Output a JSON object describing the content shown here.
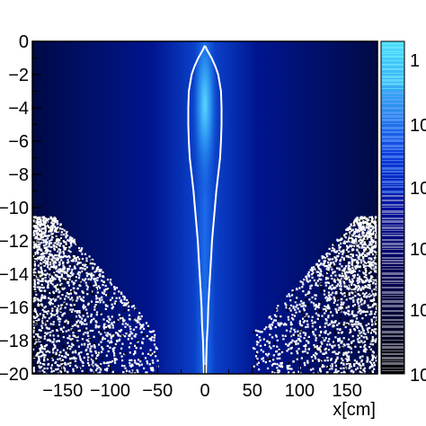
{
  "chart_data": {
    "type": "heatmap",
    "title": "",
    "xlabel": "x[cm]",
    "ylabel": "",
    "xlim": [
      -182,
      182
    ],
    "ylim": [
      -20,
      0
    ],
    "x_ticks": [
      -150,
      -100,
      -50,
      0,
      50,
      100,
      150
    ],
    "x_tick_labels": [
      "−150",
      "−100",
      "−50",
      "0",
      "50",
      "100",
      "150"
    ],
    "y_ticks": [
      0,
      -2,
      -4,
      -6,
      -8,
      -10,
      -12,
      -14,
      -16,
      -18,
      -20
    ],
    "y_tick_labels": [
      "0",
      "−2",
      "−4",
      "−6",
      "−8",
      "−10",
      "−12",
      "−14",
      "−16",
      "−18",
      "−20"
    ],
    "colorbar": {
      "scale": "log",
      "labels_visible": [
        "1",
        "10",
        "10",
        "10",
        "10",
        "10"
      ],
      "colors": [
        "#000000",
        "#000033",
        "#00005a",
        "#0010a0",
        "#1040e0",
        "#30a0f0",
        "#50e0ff"
      ]
    },
    "contour": {
      "color": "#ffffff",
      "y": [
        -0.3,
        -0.5,
        -1.0,
        -1.5,
        -2.0,
        -3.0,
        -4.0,
        -5.0,
        -6.0,
        -7.0,
        -8.0,
        -9.0,
        -10.0,
        -11.0,
        -12.0,
        -13.0,
        -14.0,
        -15.0,
        -16.0,
        -17.0,
        -18.0,
        -19.0,
        -20.0
      ],
      "half_width": [
        0.5,
        2.0,
        7.0,
        11.0,
        14.0,
        17.0,
        17.5,
        17.5,
        17.0,
        16.0,
        14.0,
        12.0,
        10.5,
        9.0,
        7.5,
        6.5,
        5.5,
        4.5,
        3.5,
        3.0,
        2.0,
        1.5,
        1.0
      ]
    }
  }
}
